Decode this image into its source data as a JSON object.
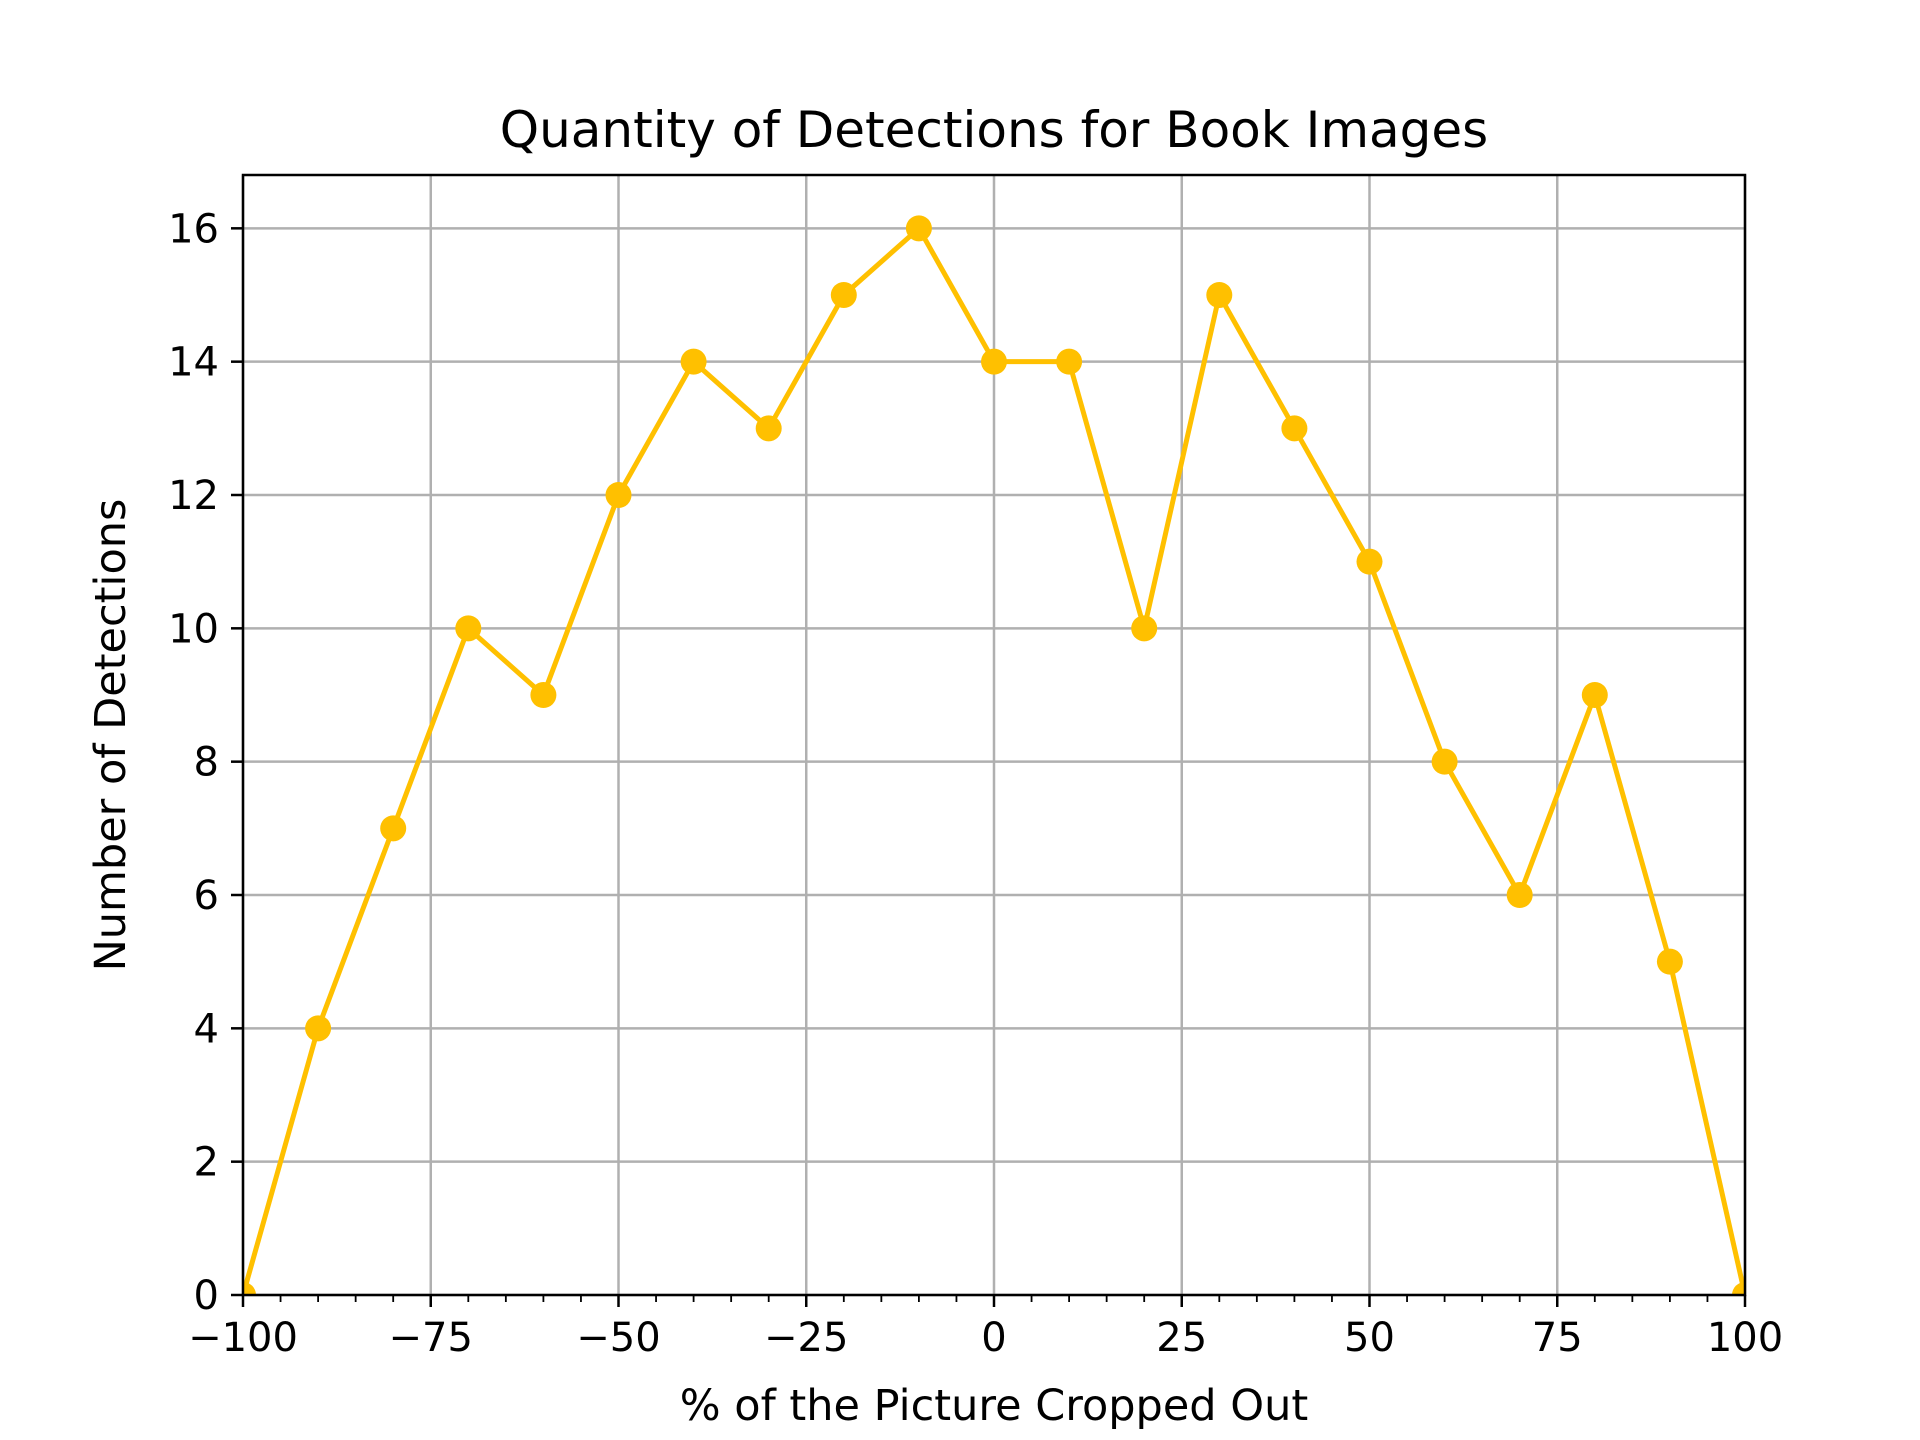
{
  "chart_data": {
    "type": "line",
    "title": "Quantity of Detections for Book Images",
    "xlabel": "% of the Picture Cropped Out",
    "ylabel": "Number of Detections",
    "xlim": [
      -100,
      100
    ],
    "ylim": [
      0,
      16.8
    ],
    "xticks": [
      -100,
      -75,
      -50,
      -25,
      0,
      25,
      50,
      75,
      100
    ],
    "xtick_labels": [
      "−100",
      "−75",
      "−50",
      "−25",
      "0",
      "25",
      "50",
      "75",
      "100"
    ],
    "yticks": [
      0,
      2,
      4,
      6,
      8,
      10,
      12,
      14,
      16
    ],
    "ytick_labels": [
      "0",
      "2",
      "4",
      "6",
      "8",
      "10",
      "12",
      "14",
      "16"
    ],
    "grid": true,
    "series": [
      {
        "color": "#ffc000",
        "marker": "circle",
        "x": [
          -100,
          -90,
          -80,
          -70,
          -60,
          -50,
          -40,
          -30,
          -20,
          -10,
          0,
          10,
          20,
          30,
          40,
          50,
          60,
          70,
          80,
          90,
          100
        ],
        "y": [
          0,
          4,
          7,
          10,
          9,
          12,
          14,
          13,
          15,
          16,
          14,
          14,
          10,
          15,
          13,
          11,
          8,
          6,
          9,
          5,
          0
        ]
      }
    ]
  }
}
